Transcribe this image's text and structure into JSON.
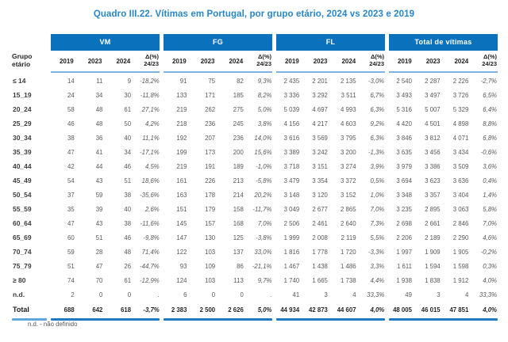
{
  "title": "Quadro III.22. Vítimas em Portugal, por grupo etário, 2024 vs 2023 e 2019",
  "colors": {
    "band_blue": "#0A72BC",
    "title_blue": "#2787C8",
    "light_rule_blue": "#7FB2DF",
    "bottom_rule_blue": "#1E79C2",
    "label_rule_blue": "#5EA6DB",
    "data_text_gray": "#595959"
  },
  "table": {
    "row_header": "Grupo etário",
    "groups": [
      "VM",
      "FG",
      "FL",
      "Total de vítimas"
    ],
    "year_columns": [
      "2019",
      "2023",
      "2024"
    ],
    "delta_column": {
      "line1": "Δ(%)",
      "line2": "24/23"
    },
    "rows": [
      {
        "label": "≤ 14",
        "vm": [
          "14",
          "11",
          "9",
          "-18,2%"
        ],
        "fg": [
          "91",
          "75",
          "82",
          "9,3%"
        ],
        "fl": [
          "2 435",
          "2 201",
          "2 135",
          "-3,0%"
        ],
        "total": [
          "2 540",
          "2 287",
          "2 226",
          "-2,7%"
        ]
      },
      {
        "label": "15_19",
        "vm": [
          "24",
          "34",
          "30",
          "-11,8%"
        ],
        "fg": [
          "133",
          "171",
          "185",
          "8,2%"
        ],
        "fl": [
          "3 336",
          "3 292",
          "3 511",
          "6,7%"
        ],
        "total": [
          "3 493",
          "3 497",
          "3 726",
          "6,5%"
        ]
      },
      {
        "label": "20_24",
        "vm": [
          "58",
          "48",
          "61",
          "27,1%"
        ],
        "fg": [
          "219",
          "262",
          "275",
          "5,0%"
        ],
        "fl": [
          "5 039",
          "4 697",
          "4 993",
          "6,3%"
        ],
        "total": [
          "5 316",
          "5 007",
          "5 329",
          "6,4%"
        ]
      },
      {
        "label": "25_29",
        "vm": [
          "46",
          "48",
          "50",
          "4,2%"
        ],
        "fg": [
          "218",
          "236",
          "245",
          "3,8%"
        ],
        "fl": [
          "4 156",
          "4 217",
          "4 603",
          "9,2%"
        ],
        "total": [
          "4 420",
          "4 501",
          "4 898",
          "8,8%"
        ]
      },
      {
        "label": "30_34",
        "vm": [
          "38",
          "36",
          "40",
          "11,1%"
        ],
        "fg": [
          "192",
          "207",
          "236",
          "14,0%"
        ],
        "fl": [
          "3 616",
          "3 569",
          "3 795",
          "6,3%"
        ],
        "total": [
          "3 846",
          "3 812",
          "4 071",
          "6,8%"
        ]
      },
      {
        "label": "35_39",
        "vm": [
          "47",
          "41",
          "34",
          "-17,1%"
        ],
        "fg": [
          "199",
          "173",
          "200",
          "15,6%"
        ],
        "fl": [
          "3 389",
          "3 242",
          "3 200",
          "-1,3%"
        ],
        "total": [
          "3 635",
          "3 456",
          "3 434",
          "-0,6%"
        ]
      },
      {
        "label": "40_44",
        "vm": [
          "42",
          "44",
          "46",
          "4,5%"
        ],
        "fg": [
          "219",
          "191",
          "189",
          "-1,0%"
        ],
        "fl": [
          "3 718",
          "3 151",
          "3 274",
          "3,9%"
        ],
        "total": [
          "3 979",
          "3 386",
          "3 509",
          "3,6%"
        ]
      },
      {
        "label": "45_49",
        "vm": [
          "54",
          "43",
          "51",
          "18,6%"
        ],
        "fg": [
          "161",
          "226",
          "213",
          "-5,8%"
        ],
        "fl": [
          "3 479",
          "3 354",
          "3 372",
          "0,5%"
        ],
        "total": [
          "3 694",
          "3 623",
          "3 636",
          "0,4%"
        ]
      },
      {
        "label": "50_54",
        "vm": [
          "37",
          "59",
          "38",
          "-35,6%"
        ],
        "fg": [
          "163",
          "178",
          "214",
          "20,2%"
        ],
        "fl": [
          "3 148",
          "3 120",
          "3 152",
          "1,0%"
        ],
        "total": [
          "3 348",
          "3 357",
          "3 404",
          "1,4%"
        ]
      },
      {
        "label": "55_59",
        "vm": [
          "35",
          "39",
          "40",
          "2,6%"
        ],
        "fg": [
          "151",
          "179",
          "158",
          "-11,7%"
        ],
        "fl": [
          "3 049",
          "2 677",
          "2 865",
          "7,0%"
        ],
        "total": [
          "3 235",
          "2 895",
          "3 063",
          "5,8%"
        ]
      },
      {
        "label": "60_64",
        "vm": [
          "47",
          "43",
          "38",
          "-11,6%"
        ],
        "fg": [
          "145",
          "157",
          "168",
          "7,0%"
        ],
        "fl": [
          "2 506",
          "2 461",
          "2 640",
          "7,3%"
        ],
        "total": [
          "2 698",
          "2 661",
          "2 846",
          "7,0%"
        ]
      },
      {
        "label": "65_69",
        "vm": [
          "60",
          "51",
          "46",
          "-9,8%"
        ],
        "fg": [
          "147",
          "130",
          "125",
          "-3,8%"
        ],
        "fl": [
          "1 999",
          "2 008",
          "2 119",
          "5,5%"
        ],
        "total": [
          "2 206",
          "2 189",
          "2 290",
          "4,6%"
        ]
      },
      {
        "label": "70_74",
        "vm": [
          "59",
          "28",
          "48",
          "71,4%"
        ],
        "fg": [
          "122",
          "103",
          "137",
          "33,0%"
        ],
        "fl": [
          "1 816",
          "1 778",
          "1 720",
          "-3,3%"
        ],
        "total": [
          "1 997",
          "1 909",
          "1 905",
          "-0,2%"
        ]
      },
      {
        "label": "75_79",
        "vm": [
          "51",
          "47",
          "26",
          "-44,7%"
        ],
        "fg": [
          "93",
          "109",
          "86",
          "-21,1%"
        ],
        "fl": [
          "1 467",
          "1 438",
          "1 486",
          "3,3%"
        ],
        "total": [
          "1 611",
          "1 594",
          "1 598",
          "0,3%"
        ]
      },
      {
        "label": "≥ 80",
        "vm": [
          "74",
          "70",
          "61",
          "-12,9%"
        ],
        "fg": [
          "124",
          "103",
          "113",
          "9,7%"
        ],
        "fl": [
          "1 740",
          "1 665",
          "1 738",
          "4,4%"
        ],
        "total": [
          "1 938",
          "1 838",
          "1 912",
          "4,0%"
        ]
      },
      {
        "label": "n.d.",
        "vm": [
          "2",
          "0",
          "0",
          "."
        ],
        "fg": [
          "6",
          "0",
          "0",
          "."
        ],
        "fl": [
          "41",
          "3",
          "4",
          "33,3%"
        ],
        "total": [
          "49",
          "3",
          "4",
          "33,3%"
        ]
      }
    ],
    "total_row": {
      "label": "Total",
      "vm": [
        "688",
        "642",
        "618",
        "-3,7%"
      ],
      "fg": [
        "2 383",
        "2 500",
        "2 626",
        "5,0%"
      ],
      "fl": [
        "44 934",
        "42 873",
        "44 607",
        "4,0%"
      ],
      "total": [
        "48 005",
        "46 015",
        "47 851",
        "4,0%"
      ]
    },
    "footnote": "n.d. - não definido"
  }
}
